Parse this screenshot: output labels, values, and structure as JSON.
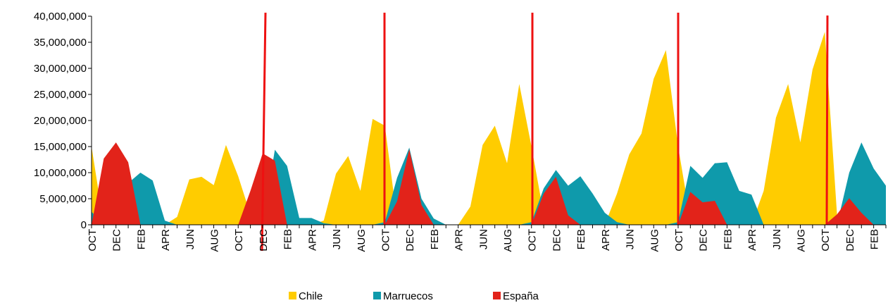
{
  "chart_data": {
    "type": "area",
    "categories": [
      "OCT",
      null,
      "DEC",
      null,
      "FEB",
      null,
      "APR",
      null,
      "JUN",
      null,
      "AUG",
      null,
      "OCT",
      null,
      "DEC",
      null,
      "FEB",
      null,
      "APR",
      null,
      "JUN",
      null,
      "AUG",
      null,
      "OCT",
      null,
      "DEC",
      null,
      "FEB",
      null,
      "APR",
      null,
      "JUN",
      null,
      "AUG",
      null,
      "OCT",
      null,
      "DEC",
      null,
      "FEB",
      null,
      "APR",
      null,
      "JUN",
      null,
      "AUG",
      null,
      "OCT",
      null,
      "DEC",
      null,
      "FEB",
      null,
      "APR",
      null,
      "JUN",
      null,
      "AUG",
      null,
      "OCT",
      null,
      "DEC",
      null,
      "FEB",
      null
    ],
    "series": [
      {
        "name": "Chile",
        "color": "#ffcc00",
        "values": [
          15000000,
          0,
          0,
          0,
          0,
          0,
          0,
          1500000,
          8700000,
          9200000,
          7600000,
          15300000,
          9300000,
          2000000,
          0,
          0,
          0,
          0,
          0,
          800000,
          9800000,
          13200000,
          6500000,
          20300000,
          19000000,
          1000000,
          0,
          0,
          0,
          0,
          0,
          3500000,
          15300000,
          19000000,
          11800000,
          27000000,
          15000000,
          2000000,
          0,
          0,
          0,
          0,
          0,
          6000000,
          13500000,
          17500000,
          28000000,
          33500000,
          15000000,
          1000000,
          0,
          0,
          0,
          0,
          0,
          6500000,
          20500000,
          27000000,
          15800000,
          29800000,
          37000000,
          2000000,
          0,
          0,
          0,
          0
        ]
      },
      {
        "name": "Marruecos",
        "color": "#0f9aab",
        "values": [
          2500000,
          0,
          0,
          8000000,
          10000000,
          8500000,
          800000,
          0,
          0,
          0,
          0,
          0,
          0,
          0,
          0,
          14400000,
          11300000,
          1300000,
          1300000,
          300000,
          0,
          0,
          0,
          0,
          500000,
          9000000,
          14800000,
          5000000,
          1200000,
          0,
          0,
          0,
          0,
          0,
          0,
          0,
          500000,
          7000000,
          10500000,
          7500000,
          9300000,
          6000000,
          2300000,
          500000,
          0,
          0,
          0,
          0,
          500000,
          11300000,
          9000000,
          11800000,
          12000000,
          6500000,
          5800000,
          0,
          0,
          0,
          0,
          0,
          0,
          0,
          10000000,
          15800000,
          10800000,
          7500000
        ]
      },
      {
        "name": "España",
        "color": "#e2231a",
        "values": [
          0,
          12700000,
          15800000,
          12000000,
          0,
          0,
          0,
          0,
          0,
          0,
          0,
          0,
          0,
          6500000,
          13700000,
          12300000,
          0,
          0,
          0,
          0,
          0,
          0,
          0,
          0,
          0,
          4500000,
          14500000,
          3800000,
          0,
          0,
          0,
          0,
          0,
          0,
          0,
          0,
          0,
          6000000,
          9200000,
          1800000,
          0,
          0,
          0,
          0,
          0,
          0,
          0,
          0,
          0,
          6300000,
          4300000,
          4600000,
          0,
          0,
          0,
          0,
          0,
          0,
          0,
          0,
          0,
          2000000,
          5100000,
          2300000,
          0,
          0
        ]
      }
    ],
    "ylim": [
      0,
      40000000
    ],
    "yticks": [
      0,
      {
        "value": 5000000,
        "label": "5,000,000"
      },
      {
        "value": 10000000,
        "label": "10,000,000"
      },
      {
        "value": 15000000,
        "label": "15,000,000"
      },
      {
        "value": 20000000,
        "label": "20,000,000"
      },
      {
        "value": 25000000,
        "label": "25,000,000"
      },
      {
        "value": 30000000,
        "label": "30,000,000"
      },
      {
        "value": 35000000,
        "label": "35,000,000"
      },
      {
        "value": 40000000,
        "label": "40,000,000"
      }
    ],
    "legend": "bottom"
  }
}
